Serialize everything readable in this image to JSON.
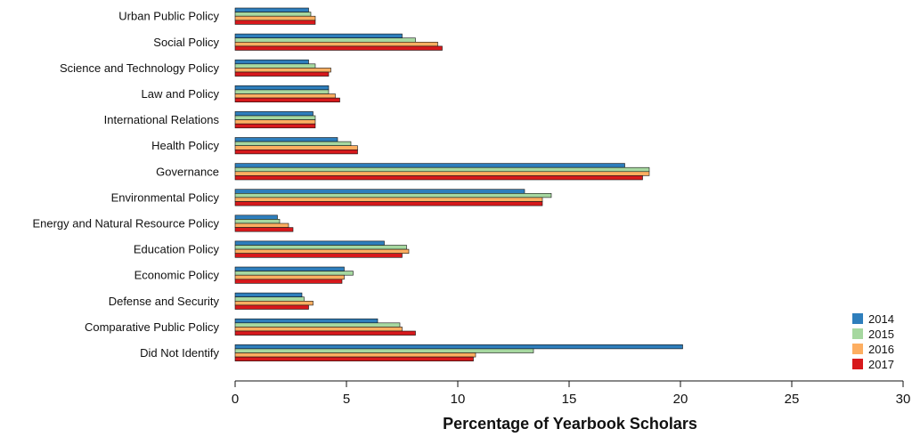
{
  "chart_data": {
    "type": "bar",
    "orientation": "horizontal",
    "categories": [
      "Urban Public Policy",
      "Social Policy",
      "Science and Technology Policy",
      "Law and Policy",
      "International Relations",
      "Health Policy",
      "Governance",
      "Environmental Policy",
      "Energy and Natural Resource Policy",
      "Education Policy",
      "Economic Policy",
      "Defense and Security",
      "Comparative Public Policy",
      "Did Not Identify"
    ],
    "series": [
      {
        "name": "2014",
        "color": "#2e7ebc",
        "values": [
          3.3,
          7.5,
          3.3,
          4.2,
          3.5,
          4.6,
          17.5,
          13.0,
          1.9,
          6.7,
          4.9,
          3.0,
          6.4,
          20.1
        ]
      },
      {
        "name": "2015",
        "color": "#a6d8a0",
        "values": [
          3.4,
          8.1,
          3.6,
          4.2,
          3.6,
          5.2,
          18.6,
          14.2,
          2.0,
          7.7,
          5.3,
          3.1,
          7.4,
          13.4
        ]
      },
      {
        "name": "2016",
        "color": "#fdae61",
        "values": [
          3.6,
          9.1,
          4.3,
          4.5,
          3.6,
          5.5,
          18.6,
          13.8,
          2.4,
          7.8,
          4.9,
          3.5,
          7.5,
          10.8
        ]
      },
      {
        "name": "2017",
        "color": "#d7191c",
        "values": [
          3.6,
          9.3,
          4.2,
          4.7,
          3.6,
          5.5,
          18.3,
          13.8,
          2.6,
          7.5,
          4.8,
          3.3,
          8.1,
          10.7
        ]
      }
    ],
    "title": "",
    "xlabel": "Percentage of Yearbook Scholars",
    "ylabel": "",
    "xlim": [
      0,
      30
    ],
    "xticks": [
      0,
      5,
      10,
      15,
      20,
      25,
      30
    ],
    "legend_position": "bottom-right",
    "grid": false
  }
}
